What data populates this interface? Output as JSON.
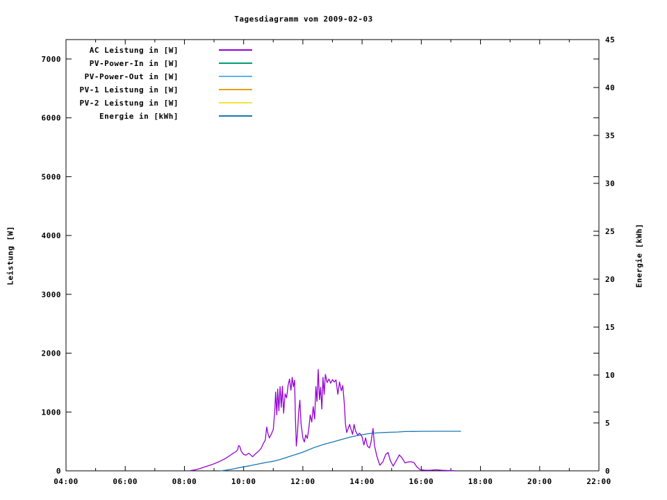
{
  "title": "Tagesdiagramm vom 2009-02-03",
  "axes": {
    "x": {
      "tick_labels": [
        "04:00",
        "06:00",
        "08:00",
        "10:00",
        "12:00",
        "14:00",
        "16:00",
        "18:00",
        "20:00",
        "22:00"
      ],
      "range_hours": [
        4,
        22
      ],
      "major_step_hours": 2,
      "minor_step_hours": 1
    },
    "left": {
      "label": "Leistung [W]",
      "tick_labels": [
        "0",
        "1000",
        "2000",
        "3000",
        "4000",
        "5000",
        "6000",
        "7000"
      ],
      "tick_values": [
        0,
        1000,
        2000,
        3000,
        4000,
        5000,
        6000,
        7000
      ],
      "range": [
        0,
        7330
      ]
    },
    "right": {
      "label": "Energie [kWh]",
      "tick_labels": [
        "0",
        "5",
        "10",
        "15",
        "20",
        "25",
        "30",
        "35",
        "40",
        "45"
      ],
      "tick_values": [
        0,
        5,
        10,
        15,
        20,
        25,
        30,
        35,
        40,
        45
      ],
      "range": [
        0,
        45
      ]
    }
  },
  "chart_data": {
    "type": "line",
    "title": "Tagesdiagramm vom 2009-02-03",
    "x_unit": "time of day (hours)",
    "x_range_hours": [
      4,
      22
    ],
    "y_left": {
      "label": "Leistung [W]",
      "lim": [
        0,
        7330
      ]
    },
    "y_right": {
      "label": "Energie [kWh]",
      "lim": [
        0,
        45
      ]
    },
    "grid": false,
    "legend_position": "top-left-inside",
    "series": [
      {
        "name": "AC Leistung in [W]",
        "axis": "left",
        "color": "#9400d3",
        "points": [
          [
            8.2,
            5
          ],
          [
            8.35,
            15
          ],
          [
            8.5,
            35
          ],
          [
            8.65,
            60
          ],
          [
            8.8,
            85
          ],
          [
            8.95,
            110
          ],
          [
            9.1,
            140
          ],
          [
            9.25,
            175
          ],
          [
            9.4,
            215
          ],
          [
            9.55,
            265
          ],
          [
            9.65,
            300
          ],
          [
            9.75,
            330
          ],
          [
            9.8,
            360
          ],
          [
            9.83,
            430
          ],
          [
            9.87,
            415
          ],
          [
            9.92,
            330
          ],
          [
            10.0,
            280
          ],
          [
            10.08,
            265
          ],
          [
            10.17,
            300
          ],
          [
            10.22,
            280
          ],
          [
            10.3,
            240
          ],
          [
            10.4,
            290
          ],
          [
            10.5,
            330
          ],
          [
            10.6,
            390
          ],
          [
            10.67,
            470
          ],
          [
            10.73,
            520
          ],
          [
            10.78,
            745
          ],
          [
            10.82,
            640
          ],
          [
            10.87,
            560
          ],
          [
            10.93,
            620
          ],
          [
            11.0,
            700
          ],
          [
            11.05,
            1000
          ],
          [
            11.08,
            1340
          ],
          [
            11.12,
            950
          ],
          [
            11.15,
            1390
          ],
          [
            11.19,
            1020
          ],
          [
            11.23,
            1430
          ],
          [
            11.27,
            1080
          ],
          [
            11.31,
            1440
          ],
          [
            11.35,
            980
          ],
          [
            11.4,
            1310
          ],
          [
            11.45,
            1240
          ],
          [
            11.5,
            1450
          ],
          [
            11.55,
            1560
          ],
          [
            11.6,
            1370
          ],
          [
            11.64,
            1590
          ],
          [
            11.68,
            1430
          ],
          [
            11.72,
            1540
          ],
          [
            11.75,
            900
          ],
          [
            11.78,
            420
          ],
          [
            11.82,
            650
          ],
          [
            11.86,
            1000
          ],
          [
            11.9,
            1200
          ],
          [
            11.94,
            800
          ],
          [
            12.0,
            560
          ],
          [
            12.05,
            490
          ],
          [
            12.1,
            610
          ],
          [
            12.15,
            550
          ],
          [
            12.2,
            710
          ],
          [
            12.25,
            950
          ],
          [
            12.3,
            830
          ],
          [
            12.35,
            1090
          ],
          [
            12.4,
            880
          ],
          [
            12.44,
            1430
          ],
          [
            12.48,
            1180
          ],
          [
            12.52,
            1725
          ],
          [
            12.56,
            1210
          ],
          [
            12.6,
            1420
          ],
          [
            12.64,
            1050
          ],
          [
            12.68,
            1590
          ],
          [
            12.72,
            1300
          ],
          [
            12.76,
            1640
          ],
          [
            12.82,
            1500
          ],
          [
            12.88,
            1560
          ],
          [
            12.94,
            1490
          ],
          [
            13.0,
            1550
          ],
          [
            13.06,
            1510
          ],
          [
            13.12,
            1545
          ],
          [
            13.18,
            1300
          ],
          [
            13.24,
            1510
          ],
          [
            13.3,
            1360
          ],
          [
            13.35,
            1450
          ],
          [
            13.4,
            1150
          ],
          [
            13.44,
            800
          ],
          [
            13.48,
            650
          ],
          [
            13.53,
            720
          ],
          [
            13.58,
            790
          ],
          [
            13.63,
            700
          ],
          [
            13.68,
            620
          ],
          [
            13.73,
            790
          ],
          [
            13.78,
            680
          ],
          [
            13.85,
            610
          ],
          [
            13.92,
            640
          ],
          [
            14.0,
            580
          ],
          [
            14.06,
            440
          ],
          [
            14.12,
            560
          ],
          [
            14.18,
            420
          ],
          [
            14.25,
            390
          ],
          [
            14.3,
            480
          ],
          [
            14.37,
            720
          ],
          [
            14.42,
            430
          ],
          [
            14.5,
            250
          ],
          [
            14.6,
            95
          ],
          [
            14.7,
            150
          ],
          [
            14.8,
            280
          ],
          [
            14.88,
            310
          ],
          [
            14.95,
            180
          ],
          [
            15.05,
            80
          ],
          [
            15.15,
            170
          ],
          [
            15.26,
            270
          ],
          [
            15.35,
            220
          ],
          [
            15.45,
            135
          ],
          [
            15.55,
            150
          ],
          [
            15.65,
            155
          ],
          [
            15.75,
            140
          ],
          [
            15.85,
            70
          ],
          [
            15.96,
            20
          ],
          [
            16.1,
            12
          ],
          [
            16.3,
            10
          ],
          [
            16.5,
            18
          ],
          [
            16.7,
            10
          ],
          [
            16.9,
            6
          ],
          [
            17.1,
            3
          ]
        ]
      },
      {
        "name": "PV-Power-In in [W]",
        "axis": "left",
        "color": "#009e73",
        "points": []
      },
      {
        "name": "PV-Power-Out in [W]",
        "axis": "left",
        "color": "#56b4e9",
        "points": []
      },
      {
        "name": "PV-1 Leistung in [W]",
        "axis": "left",
        "color": "#e69f00",
        "points": []
      },
      {
        "name": "PV-2 Leistung in [W]",
        "axis": "left",
        "color": "#f0e442",
        "points": []
      },
      {
        "name": "Energie in [kWh]",
        "axis": "right",
        "color": "#1777b0",
        "points": [
          [
            9.23,
            0
          ],
          [
            9.4,
            0.07
          ],
          [
            9.6,
            0.17
          ],
          [
            9.8,
            0.3
          ],
          [
            10.0,
            0.42
          ],
          [
            10.2,
            0.52
          ],
          [
            10.4,
            0.65
          ],
          [
            10.6,
            0.78
          ],
          [
            10.8,
            0.9
          ],
          [
            11.0,
            1.0
          ],
          [
            11.2,
            1.15
          ],
          [
            11.4,
            1.35
          ],
          [
            11.6,
            1.55
          ],
          [
            11.8,
            1.75
          ],
          [
            12.0,
            1.95
          ],
          [
            12.2,
            2.2
          ],
          [
            12.4,
            2.45
          ],
          [
            12.6,
            2.65
          ],
          [
            12.8,
            2.85
          ],
          [
            13.0,
            3.0
          ],
          [
            13.2,
            3.18
          ],
          [
            13.4,
            3.35
          ],
          [
            13.6,
            3.52
          ],
          [
            13.8,
            3.65
          ],
          [
            14.0,
            3.77
          ],
          [
            14.2,
            3.87
          ],
          [
            14.4,
            3.94
          ],
          [
            14.6,
            3.98
          ],
          [
            14.8,
            4.01
          ],
          [
            15.0,
            4.03
          ],
          [
            15.2,
            4.05
          ],
          [
            15.45,
            4.1
          ],
          [
            15.7,
            4.11
          ],
          [
            16.0,
            4.12
          ],
          [
            16.5,
            4.13
          ],
          [
            17.0,
            4.13
          ],
          [
            17.33,
            4.13
          ]
        ]
      }
    ]
  }
}
